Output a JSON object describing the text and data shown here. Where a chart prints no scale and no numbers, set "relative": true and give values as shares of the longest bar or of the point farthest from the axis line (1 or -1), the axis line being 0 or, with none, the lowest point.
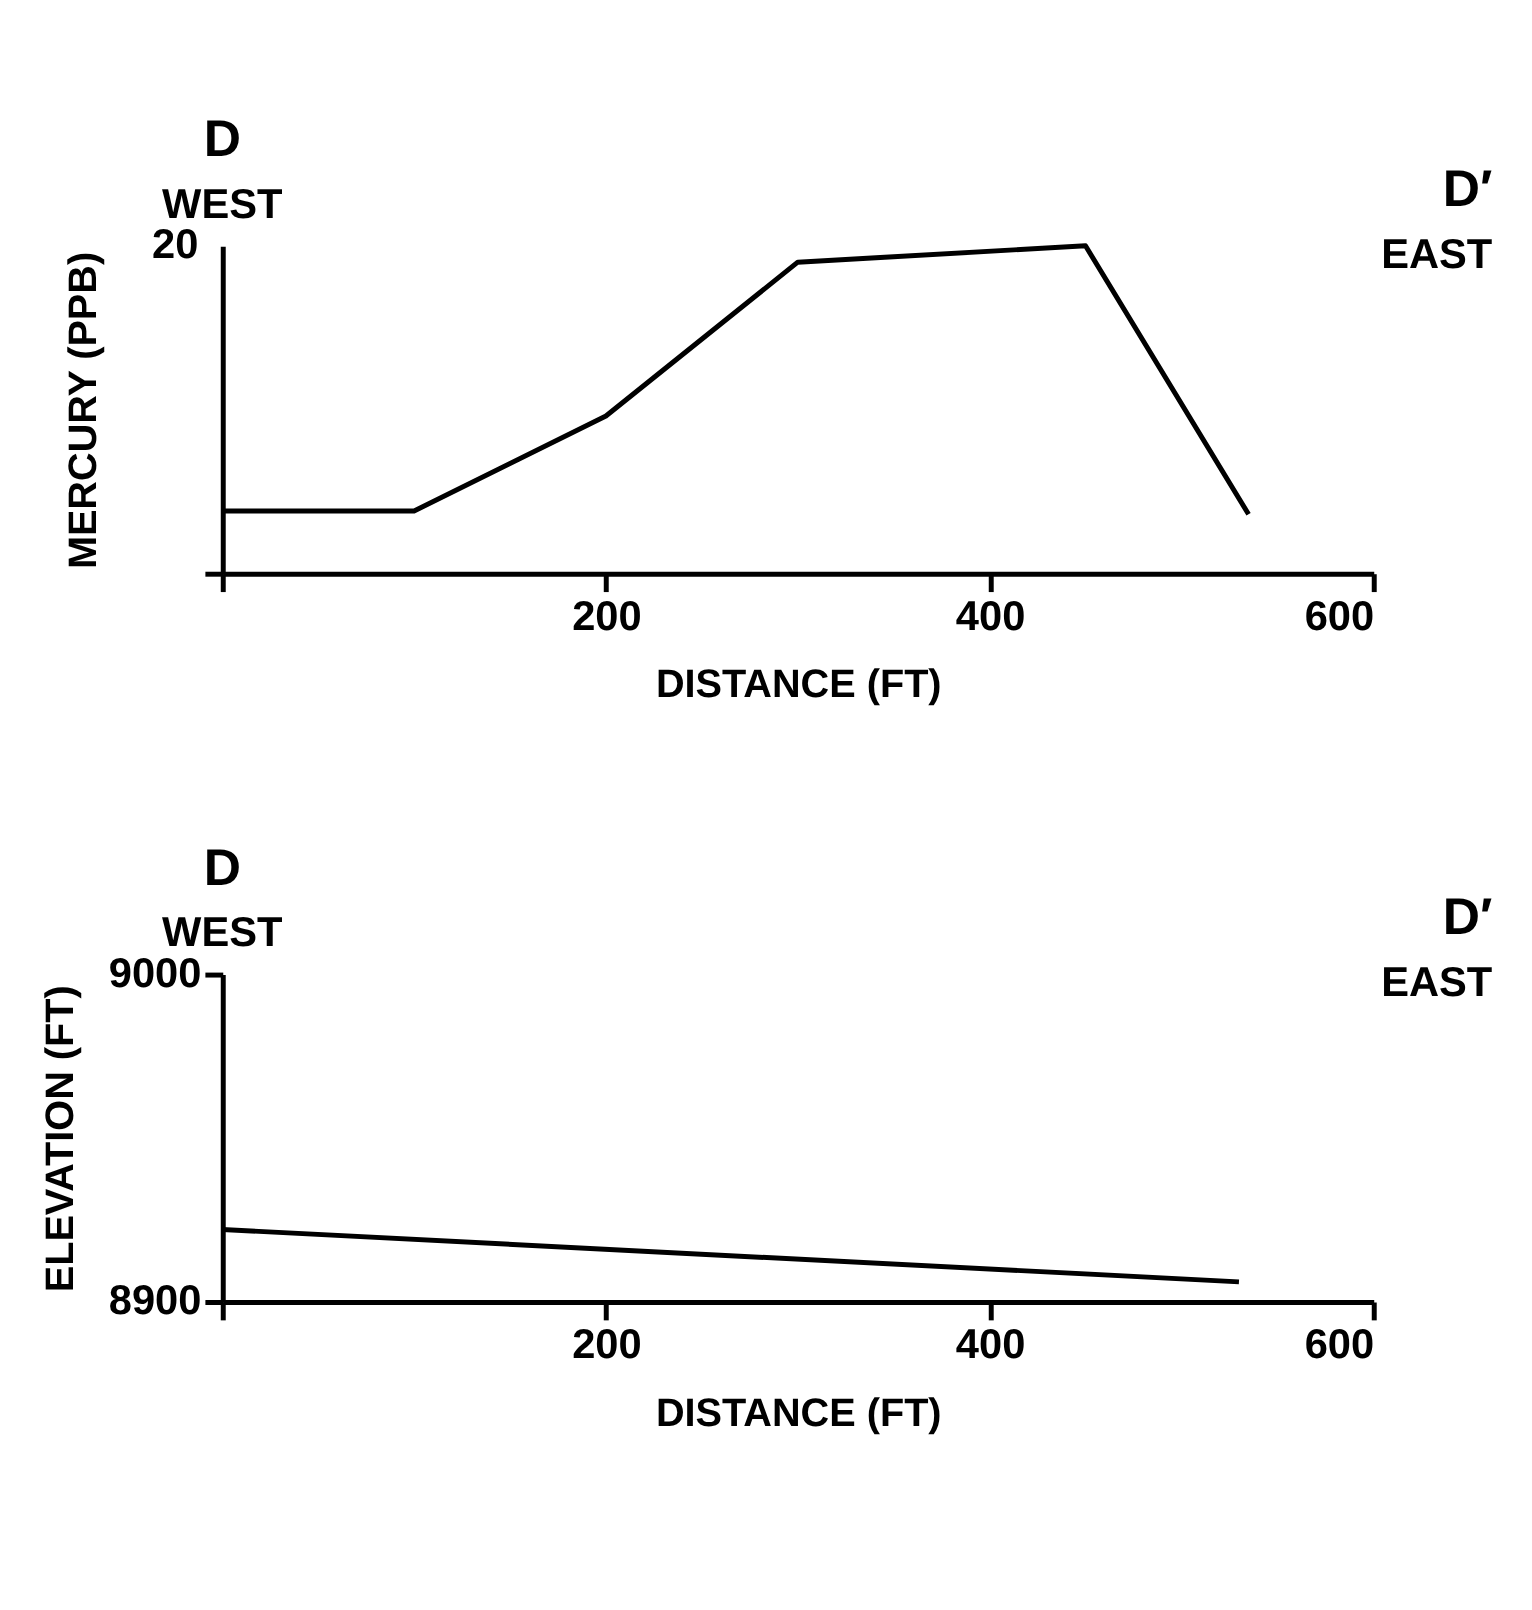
{
  "chart_data": [
    {
      "type": "line",
      "xlabel": "DISTANCE (FT)",
      "ylabel": "MERCURY (PPB)",
      "annotations": [
        "D",
        "WEST",
        "D′",
        "EAST",
        "20"
      ],
      "relative": true,
      "x": [
        0,
        100,
        200,
        300,
        450,
        535
      ],
      "series": [
        {
          "color": "#000000",
          "values": [
            0.19,
            0.19,
            0.48,
            0.95,
            1,
            0.18
          ]
        }
      ],
      "xlim": [
        0,
        600
      ],
      "xticks": [
        {
          "value": 0,
          "label": null
        },
        200,
        400,
        600
      ],
      "grid": false,
      "marker": "none",
      "line_style": "solid"
    },
    {
      "type": "line",
      "xlabel": "DISTANCE (FT)",
      "ylabel": "ELEVATION (FT)",
      "annotations": [
        "D",
        "WEST",
        "D′",
        "EAST"
      ],
      "x": [
        0,
        530
      ],
      "series": [
        {
          "color": "#000000",
          "values": [
            8922,
            8906
          ]
        }
      ],
      "xlim": [
        0,
        600
      ],
      "xticks": [
        {
          "value": 0,
          "label": null
        },
        200,
        400,
        600
      ],
      "ylim": [
        8900,
        9000
      ],
      "yticks": [
        8900,
        9000
      ],
      "grid": false,
      "marker": "none",
      "line_style": "solid"
    }
  ]
}
